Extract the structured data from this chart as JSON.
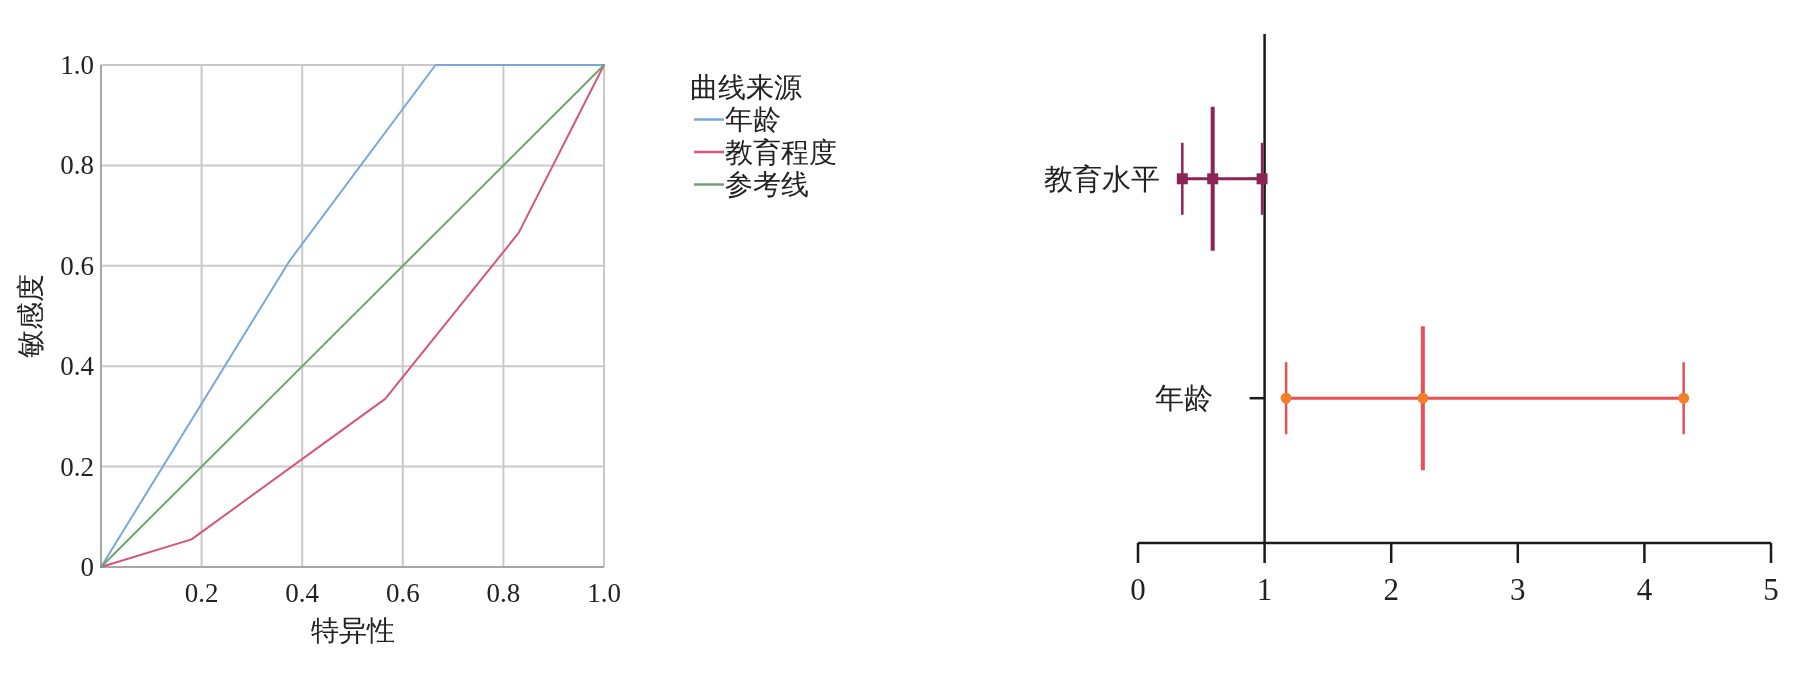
{
  "chart_data": [
    {
      "type": "line",
      "xlabel": "特异性",
      "ylabel": "敏感度",
      "legend_title": "曲线来源",
      "series": [
        {
          "name": "年龄",
          "color": "#7aa7d8",
          "x": [
            0,
            0.375,
            0.665,
            1
          ],
          "values": [
            0,
            0.61,
            1,
            1
          ]
        },
        {
          "name": "教育程度",
          "color": "#d3567b",
          "x": [
            0,
            0.18,
            0.565,
            0.83,
            1
          ],
          "values": [
            0,
            0.055,
            0.335,
            0.665,
            1
          ]
        },
        {
          "name": "参考线",
          "color": "#6ea46e",
          "x": [
            0,
            1
          ],
          "values": [
            0,
            1
          ]
        }
      ],
      "xlim": [
        0,
        1
      ],
      "ylim": [
        0,
        1
      ],
      "xticks": [
        {
          "value": 0,
          "label": null
        },
        0.2,
        0.4,
        0.6,
        0.8,
        {
          "value": 1,
          "label": "1.0"
        }
      ],
      "yticks": [
        0,
        0.2,
        0.4,
        0.6,
        0.8,
        {
          "value": 1,
          "label": "1.0"
        }
      ],
      "grid": true,
      "legend": "right"
    },
    {
      "type": "scatter",
      "orientation": "horizontal",
      "categories": [
        "教育水平",
        "年龄"
      ],
      "series": [
        {
          "type": "line",
          "color": "#8c2556",
          "marker": "square",
          "x": [
            "教育水平",
            "教育水平",
            "教育水平"
          ],
          "values": [
            0.35,
            0.59,
            0.98
          ]
        },
        {
          "type": "line",
          "color": "#e94f57",
          "colors": [
            "#f47f2a",
            "#f47f2a",
            "#f47f2a"
          ],
          "marker": "circle",
          "x": [
            "年龄",
            "年龄",
            "年龄"
          ],
          "values": [
            1.17,
            2.25,
            4.31
          ]
        }
      ],
      "xlim": [
        0,
        5
      ],
      "xticks": [
        0,
        1,
        2,
        3,
        4,
        5
      ],
      "ref_lines": [
        {
          "axis": "x",
          "value": 1
        }
      ]
    }
  ]
}
